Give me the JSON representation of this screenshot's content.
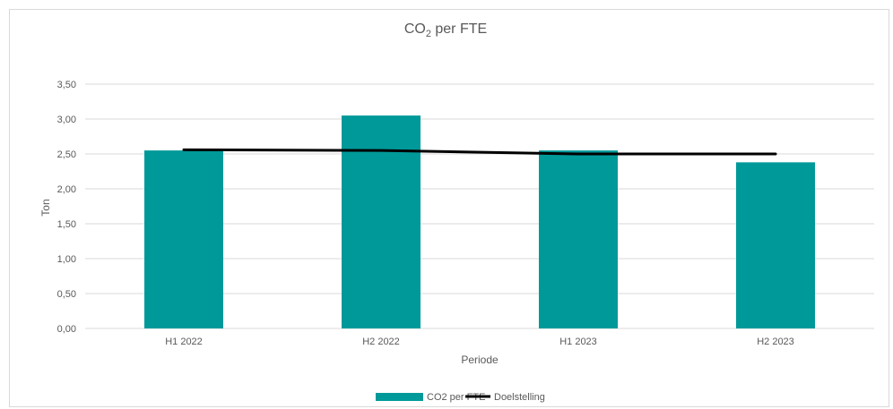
{
  "chart_data": {
    "type": "bar",
    "title_main": "CO",
    "title_sub": "2",
    "title_rest": " per FTE",
    "xlabel": "Periode",
    "ylabel": "Ton",
    "categories": [
      "H1 2022",
      "H2 2022",
      "H1 2023",
      "H2 2023"
    ],
    "yticks": [
      "0,00",
      "0,50",
      "1,00",
      "1,50",
      "2,00",
      "2,50",
      "3,00",
      "3,50"
    ],
    "ylim": [
      0,
      3.5
    ],
    "grid": true,
    "legend_position": "bottom",
    "series": [
      {
        "name": "CO2 per FTE",
        "kind": "bar",
        "color": "#009999",
        "values": [
          2.55,
          3.05,
          2.55,
          2.38
        ]
      },
      {
        "name": "Doelstelling",
        "kind": "line",
        "color": "#000000",
        "values": [
          2.56,
          2.55,
          2.5,
          2.5
        ]
      }
    ]
  }
}
